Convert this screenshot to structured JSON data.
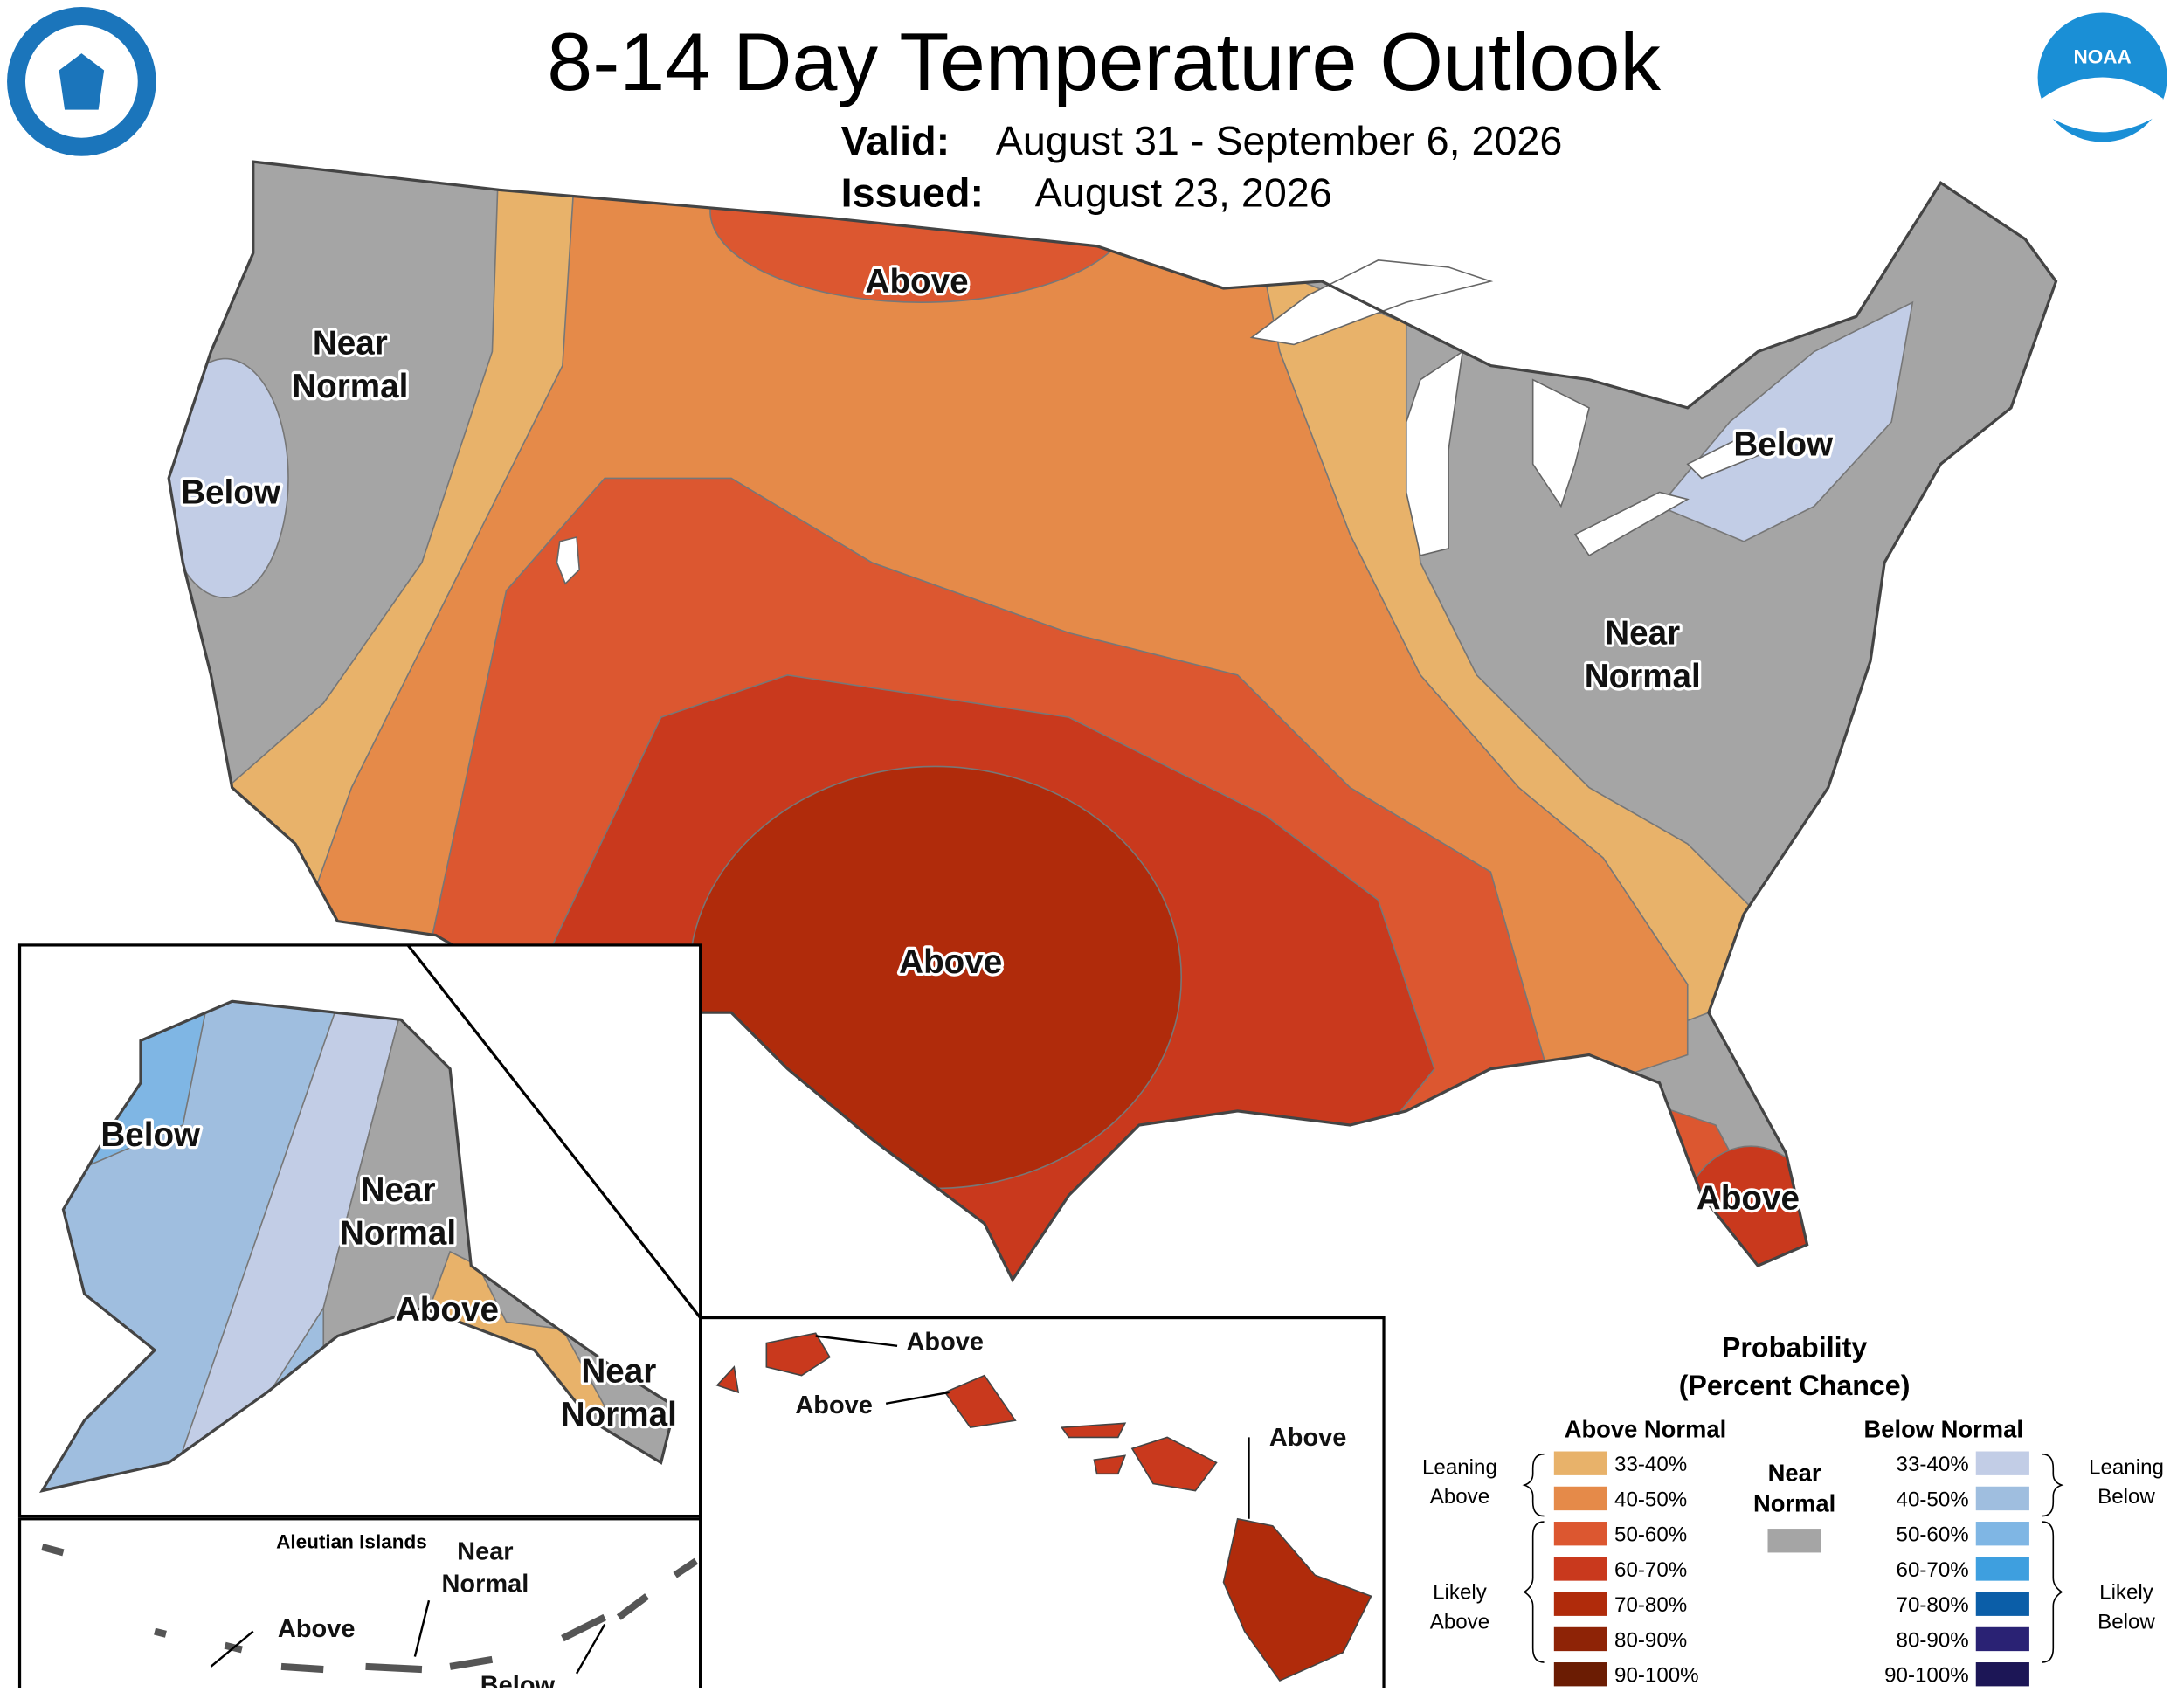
{
  "header": {
    "title": "8-14 Day Temperature Outlook",
    "valid_label": "Valid:",
    "valid": "August 31 - September 6, 2026",
    "issued_label": "Issued:",
    "issued": "August 23, 2026",
    "logo_text": "NOAA"
  },
  "conus_labels": [
    [
      "Above"
    ],
    [
      "Near",
      "Normal"
    ],
    [
      "Below"
    ],
    [
      "Below"
    ],
    [
      "Near",
      "Normal"
    ],
    [
      "Above"
    ],
    [
      "Above"
    ]
  ],
  "alaska_labels": [
    [
      "Below"
    ],
    [
      "Near",
      "Normal"
    ],
    [
      "Above"
    ],
    [
      "Near",
      "Normal"
    ]
  ],
  "aleutian": {
    "title": "Aleutian Islands",
    "labels": [
      [
        "Near",
        "Normal"
      ],
      [
        "Above"
      ],
      [
        "Below"
      ]
    ]
  },
  "hawaii_labels": [
    [
      "Above"
    ],
    [
      "Above"
    ],
    [
      "Above"
    ]
  ],
  "legend": {
    "title": [
      "Probability",
      "(Percent Chance)"
    ],
    "above": {
      "title": "Above Normal",
      "ranges": [
        "33-40%",
        "40-50%",
        "50-60%",
        "60-70%",
        "70-80%",
        "80-90%",
        "90-100%"
      ],
      "colors": [
        "#e8b26a",
        "#e58a49",
        "#dc5730",
        "#c9391d",
        "#b02b0b",
        "#8e2306",
        "#6b1c03"
      ],
      "leaning": [
        "Leaning",
        "Above"
      ],
      "likely": [
        "Likely",
        "Above"
      ]
    },
    "below": {
      "title": "Below Normal",
      "ranges": [
        "33-40%",
        "40-50%",
        "50-60%",
        "60-70%",
        "70-80%",
        "80-90%",
        "90-100%"
      ],
      "colors": [
        "#c2cde6",
        "#9fbedf",
        "#7fb6e4",
        "#3e9fdf",
        "#0b5ea8",
        "#2a2274",
        "#1c1656"
      ],
      "leaning": [
        "Leaning",
        "Below"
      ],
      "likely": [
        "Likely",
        "Below"
      ]
    },
    "near": {
      "title": [
        "Near",
        "Normal"
      ],
      "color": "#a5a5a5"
    }
  }
}
